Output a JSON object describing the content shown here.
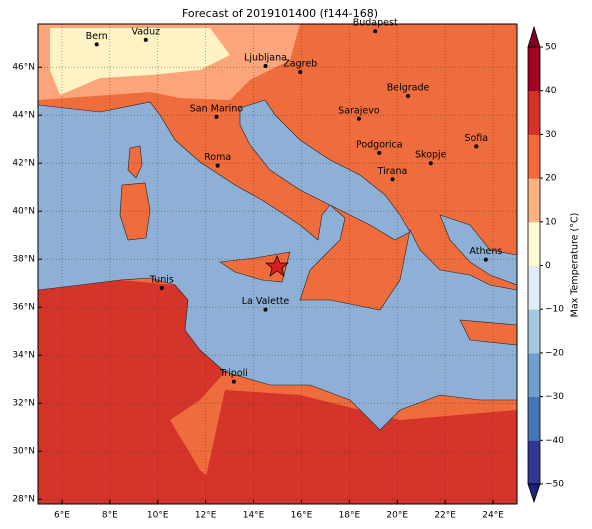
{
  "title": "Forecast of 2019101400 (f144-168)",
  "map": {
    "xlim": [
      5,
      25
    ],
    "ylim": [
      27.8,
      47.8
    ],
    "grid": true,
    "xticks": [
      {
        "value": 6,
        "label": "6°E"
      },
      {
        "value": 8,
        "label": "8°E"
      },
      {
        "value": 10,
        "label": "10°E"
      },
      {
        "value": 12,
        "label": "12°E"
      },
      {
        "value": 14,
        "label": "14°E"
      },
      {
        "value": 16,
        "label": "16°E"
      },
      {
        "value": 18,
        "label": "18°E"
      },
      {
        "value": 20,
        "label": "20°E"
      },
      {
        "value": 22,
        "label": "22°E"
      },
      {
        "value": 24,
        "label": "24°E"
      }
    ],
    "yticks": [
      {
        "value": 28,
        "label": "28°N"
      },
      {
        "value": 30,
        "label": "30°N"
      },
      {
        "value": 32,
        "label": "32°N"
      },
      {
        "value": 34,
        "label": "34°N"
      },
      {
        "value": 36,
        "label": "36°N"
      },
      {
        "value": 38,
        "label": "38°N"
      },
      {
        "value": 40,
        "label": "40°N"
      },
      {
        "value": 42,
        "label": "42°N"
      },
      {
        "value": 44,
        "label": "44°N"
      },
      {
        "value": 46,
        "label": "46°N"
      }
    ],
    "cities": [
      {
        "name": "Bern",
        "lon": 7.45,
        "lat": 46.95
      },
      {
        "name": "Vaduz",
        "lon": 9.5,
        "lat": 47.14
      },
      {
        "name": "Budapest",
        "lon": 19.08,
        "lat": 47.5
      },
      {
        "name": "Ljubljana",
        "lon": 14.5,
        "lat": 46.05
      },
      {
        "name": "Zagreb",
        "lon": 15.95,
        "lat": 45.8
      },
      {
        "name": "Belgrade",
        "lon": 20.45,
        "lat": 44.8
      },
      {
        "name": "Sarajevo",
        "lon": 18.4,
        "lat": 43.85
      },
      {
        "name": "San Marino",
        "lon": 12.45,
        "lat": 43.93
      },
      {
        "name": "Podgorica",
        "lon": 19.25,
        "lat": 42.43
      },
      {
        "name": "Sofia",
        "lon": 23.3,
        "lat": 42.7
      },
      {
        "name": "Skopje",
        "lon": 21.4,
        "lat": 42.0
      },
      {
        "name": "Roma",
        "lon": 12.5,
        "lat": 41.9
      },
      {
        "name": "Tirana",
        "lon": 19.8,
        "lat": 41.33
      },
      {
        "name": "Athens",
        "lon": 23.7,
        "lat": 37.98
      },
      {
        "name": "Tunis",
        "lon": 10.17,
        "lat": 36.8
      },
      {
        "name": "La Valette",
        "lon": 14.5,
        "lat": 35.9
      },
      {
        "name": "Tripoli",
        "lon": 13.18,
        "lat": 32.9
      }
    ]
  },
  "colorbar": {
    "label": "Max Temperature (°C)",
    "lim": [
      -50,
      50
    ],
    "ticks": [
      {
        "value": -50,
        "label": "−50"
      },
      {
        "value": -40,
        "label": "−40"
      },
      {
        "value": -30,
        "label": "−30"
      },
      {
        "value": -20,
        "label": "−20"
      },
      {
        "value": -10,
        "label": "−10"
      },
      0,
      10,
      20,
      30,
      40,
      50
    ],
    "colors": [
      "#313695",
      "#4575b4",
      "#6f9fcc",
      "#a5c8e0",
      "#dfeef5",
      "#fffbd0",
      "#fdb27f",
      "#f4683c",
      "#d73027",
      "#a50026"
    ],
    "under": "#1b237a",
    "over": "#7f0026"
  }
}
